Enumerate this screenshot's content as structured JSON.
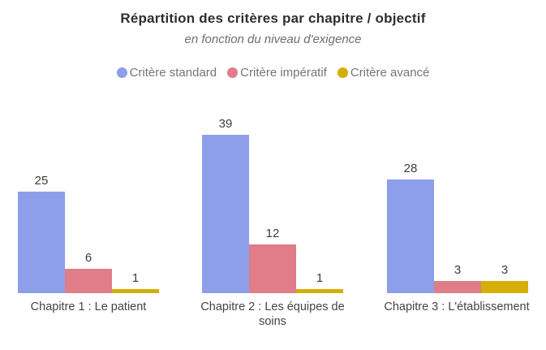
{
  "header": {
    "title": "Répartition des critères par chapitre / objectif",
    "subtitle": "en fonction du niveau d'exigence"
  },
  "chart_data": {
    "type": "bar",
    "title": "Répartition des critères par chapitre / objectif",
    "subtitle": "en fonction du niveau d'exigence",
    "categories": [
      "Chapitre 1 : Le patient",
      "Chapitre 2 : Les équipes de soins",
      "Chapitre 3 : L'établissement"
    ],
    "series": [
      {
        "id": "standard",
        "name": "Critère standard",
        "color": "#8d9eea",
        "values": [
          25,
          39,
          28
        ]
      },
      {
        "id": "imperatif",
        "name": "Critère impératif",
        "color": "#e07d88",
        "values": [
          6,
          12,
          3
        ]
      },
      {
        "id": "avance",
        "name": "Critère avancé",
        "color": "#d5af07",
        "values": [
          1,
          1,
          3
        ]
      }
    ],
    "value_labels_shown": true,
    "legend_position": "top",
    "ylim": [
      0,
      40
    ],
    "gridlines": false,
    "axes_lines_shown": false
  }
}
